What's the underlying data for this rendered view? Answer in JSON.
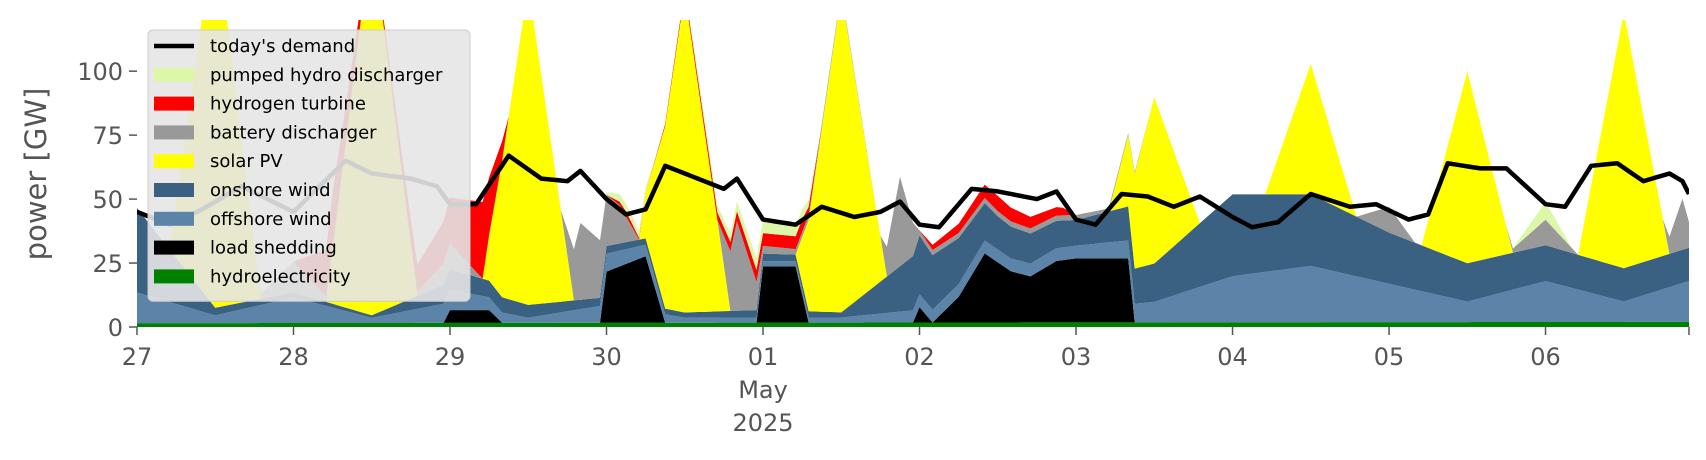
{
  "chart_data": {
    "type": "area",
    "title": "",
    "xlabel": "",
    "ylabel": "power [GW]",
    "ylim": [
      0,
      120
    ],
    "xlim": [
      "2025-04-27T00:00",
      "2025-05-06T22:00"
    ],
    "yticks": [
      0,
      25,
      50,
      75,
      100
    ],
    "xtick_labels": [
      {
        "date": "2025-04-27",
        "label": "27"
      },
      {
        "date": "2025-04-28",
        "label": "28"
      },
      {
        "date": "2025-04-29",
        "label": "29"
      },
      {
        "date": "2025-04-30",
        "label": "30"
      },
      {
        "date": "2025-05-01",
        "label": "01"
      },
      {
        "date": "2025-05-02",
        "label": "02"
      },
      {
        "date": "2025-05-03",
        "label": "03"
      },
      {
        "date": "2025-05-04",
        "label": "04"
      },
      {
        "date": "2025-05-05",
        "label": "05"
      },
      {
        "date": "2025-05-06",
        "label": "06"
      }
    ],
    "xtick_sublabels": {
      "month": "May",
      "year": "2025",
      "under_date": "2025-05-01"
    },
    "grid": false,
    "legend_position": "top-left",
    "stacked_series": [
      {
        "name": "hydroelectricity",
        "color": "#008000",
        "points": [
          [
            "2025-04-27T00:00",
            1.5
          ],
          [
            "2025-05-06T22:00",
            2
          ]
        ]
      },
      {
        "name": "load shedding",
        "color": "#000000",
        "points": [
          [
            "2025-04-27T00:00",
            0
          ],
          [
            "2025-04-28T23:00",
            0
          ],
          [
            "2025-04-29T00:00",
            5
          ],
          [
            "2025-04-29T06:00",
            5
          ],
          [
            "2025-04-29T08:00",
            0
          ],
          [
            "2025-04-29T23:00",
            0
          ],
          [
            "2025-04-30T00:00",
            20
          ],
          [
            "2025-04-30T06:00",
            26
          ],
          [
            "2025-04-30T09:00",
            0
          ],
          [
            "2025-04-30T23:00",
            0
          ],
          [
            "2025-05-01T00:00",
            22
          ],
          [
            "2025-05-01T05:00",
            22
          ],
          [
            "2025-05-01T07:00",
            0
          ],
          [
            "2025-05-01T23:00",
            0
          ],
          [
            "2025-05-02T00:00",
            6
          ],
          [
            "2025-05-02T02:00",
            0
          ],
          [
            "2025-05-02T06:00",
            10
          ],
          [
            "2025-05-02T10:00",
            27
          ],
          [
            "2025-05-02T14:00",
            20
          ],
          [
            "2025-05-02T17:00",
            18
          ],
          [
            "2025-05-02T21:00",
            24
          ],
          [
            "2025-05-03T00:00",
            25
          ],
          [
            "2025-05-03T08:00",
            25
          ],
          [
            "2025-05-03T09:00",
            0
          ],
          [
            "2025-05-06T22:00",
            0
          ]
        ]
      },
      {
        "name": "offshore wind",
        "color": "#5b84a8",
        "points": [
          [
            "2025-04-27T00:00",
            12
          ],
          [
            "2025-04-27T12:00",
            3
          ],
          [
            "2025-04-28T00:00",
            10
          ],
          [
            "2025-04-28T12:00",
            2
          ],
          [
            "2025-04-29T00:00",
            8
          ],
          [
            "2025-04-29T12:00",
            2
          ],
          [
            "2025-04-30T00:00",
            7
          ],
          [
            "2025-04-30T12:00",
            2
          ],
          [
            "2025-05-01T00:00",
            2
          ],
          [
            "2025-05-01T12:00",
            2
          ],
          [
            "2025-05-02T00:00",
            5
          ],
          [
            "2025-05-02T12:00",
            5
          ],
          [
            "2025-05-03T00:00",
            5
          ],
          [
            "2025-05-03T12:00",
            8
          ],
          [
            "2025-05-04T00:00",
            18
          ],
          [
            "2025-05-04T12:00",
            22
          ],
          [
            "2025-05-05T00:00",
            15
          ],
          [
            "2025-05-05T12:00",
            8
          ],
          [
            "2025-05-06T00:00",
            16
          ],
          [
            "2025-05-06T12:00",
            8
          ],
          [
            "2025-05-06T22:00",
            16
          ]
        ]
      },
      {
        "name": "onshore wind",
        "color": "#3b6182",
        "points": [
          [
            "2025-04-27T00:00",
            33
          ],
          [
            "2025-04-27T12:00",
            3
          ],
          [
            "2025-04-28T00:00",
            2
          ],
          [
            "2025-04-28T12:00",
            1
          ],
          [
            "2025-04-29T00:00",
            8
          ],
          [
            "2025-04-29T12:00",
            5
          ],
          [
            "2025-04-30T00:00",
            3
          ],
          [
            "2025-04-30T12:00",
            2
          ],
          [
            "2025-05-01T00:00",
            3
          ],
          [
            "2025-05-01T12:00",
            2
          ],
          [
            "2025-05-02T00:00",
            23
          ],
          [
            "2025-05-02T12:00",
            13
          ],
          [
            "2025-05-03T00:00",
            10
          ],
          [
            "2025-05-03T12:00",
            15
          ],
          [
            "2025-05-04T00:00",
            32
          ],
          [
            "2025-05-04T12:00",
            28
          ],
          [
            "2025-05-05T00:00",
            20
          ],
          [
            "2025-05-05T12:00",
            15
          ],
          [
            "2025-05-06T00:00",
            14
          ],
          [
            "2025-05-06T12:00",
            13
          ],
          [
            "2025-05-06T22:00",
            13
          ]
        ]
      },
      {
        "name": "solar PV",
        "color": "#ffff00",
        "points": [
          [
            "2025-04-27T00:00",
            0
          ],
          [
            "2025-04-27T05:00",
            0
          ],
          [
            "2025-04-27T12:00",
            150
          ],
          [
            "2025-04-27T19:00",
            0
          ],
          [
            "2025-04-28T05:00",
            0
          ],
          [
            "2025-04-28T12:00",
            150
          ],
          [
            "2025-04-28T19:00",
            0
          ],
          [
            "2025-04-29T05:00",
            0
          ],
          [
            "2025-04-29T12:00",
            125
          ],
          [
            "2025-04-29T19:00",
            0
          ],
          [
            "2025-04-30T05:00",
            0
          ],
          [
            "2025-04-30T12:00",
            125
          ],
          [
            "2025-04-30T19:00",
            0
          ],
          [
            "2025-05-01T05:00",
            0
          ],
          [
            "2025-05-01T12:00",
            125
          ],
          [
            "2025-05-01T19:00",
            0
          ],
          [
            "2025-05-03T05:00",
            0
          ],
          [
            "2025-05-03T12:00",
            65
          ],
          [
            "2025-05-03T19:00",
            0
          ],
          [
            "2025-05-04T05:00",
            0
          ],
          [
            "2025-05-04T12:00",
            51
          ],
          [
            "2025-05-04T19:00",
            0
          ],
          [
            "2025-05-05T05:00",
            0
          ],
          [
            "2025-05-05T12:00",
            75
          ],
          [
            "2025-05-05T19:00",
            0
          ],
          [
            "2025-05-06T05:00",
            0
          ],
          [
            "2025-05-06T12:00",
            100
          ],
          [
            "2025-05-06T19:00",
            0
          ],
          [
            "2025-05-06T22:00",
            0
          ]
        ]
      },
      {
        "name": "battery discharger",
        "color": "#999999",
        "points": [
          [
            "2025-04-27T00:00",
            0
          ],
          [
            "2025-04-27T18:00",
            0
          ],
          [
            "2025-04-28T00:00",
            12
          ],
          [
            "2025-04-28T06:00",
            0
          ],
          [
            "2025-04-28T18:00",
            0
          ],
          [
            "2025-04-29T00:00",
            10
          ],
          [
            "2025-04-29T05:00",
            0
          ],
          [
            "2025-04-29T17:00",
            0
          ],
          [
            "2025-04-29T20:00",
            30
          ],
          [
            "2025-04-30T02:00",
            15
          ],
          [
            "2025-04-30T05:00",
            0
          ],
          [
            "2025-04-30T17:00",
            0
          ],
          [
            "2025-04-30T20:00",
            35
          ],
          [
            "2025-05-01T00:00",
            3
          ],
          [
            "2025-05-01T18:00",
            0
          ],
          [
            "2025-05-01T21:00",
            35
          ],
          [
            "2025-05-02T00:00",
            2
          ],
          [
            "2025-05-02T12:00",
            2
          ],
          [
            "2025-05-03T00:00",
            2
          ],
          [
            "2025-05-03T12:00",
            0
          ],
          [
            "2025-05-04T12:00",
            0
          ],
          [
            "2025-05-04T19:00",
            0
          ],
          [
            "2025-05-05T00:00",
            10
          ],
          [
            "2025-05-05T04:00",
            0
          ],
          [
            "2025-05-05T18:00",
            0
          ],
          [
            "2025-05-06T00:00",
            10
          ],
          [
            "2025-05-06T05:00",
            0
          ],
          [
            "2025-05-06T18:00",
            0
          ],
          [
            "2025-05-06T21:00",
            20
          ],
          [
            "2025-05-06T22:00",
            10
          ]
        ]
      },
      {
        "name": "hydrogen turbine",
        "color": "#ff0000",
        "points": [
          [
            "2025-04-27T00:00",
            0
          ],
          [
            "2025-04-28T00:00",
            0
          ],
          [
            "2025-04-28T06:00",
            22
          ],
          [
            "2025-04-28T12:00",
            0
          ],
          [
            "2025-04-29T00:00",
            18
          ],
          [
            "2025-04-29T05:00",
            30
          ],
          [
            "2025-04-29T09:00",
            0
          ],
          [
            "2025-04-30T00:00",
            0
          ],
          [
            "2025-04-30T03:00",
            2
          ],
          [
            "2025-04-30T06:00",
            0
          ],
          [
            "2025-05-01T00:00",
            5
          ],
          [
            "2025-05-01T06:00",
            5
          ],
          [
            "2025-05-01T09:00",
            0
          ],
          [
            "2025-05-02T00:00",
            0
          ],
          [
            "2025-05-02T02:00",
            2
          ],
          [
            "2025-05-02T12:00",
            6
          ],
          [
            "2025-05-02T22:00",
            3
          ],
          [
            "2025-05-03T00:00",
            0
          ],
          [
            "2025-05-06T22:00",
            0
          ]
        ]
      },
      {
        "name": "pumped hydro discharger",
        "color": "#ddf7a8",
        "points": [
          [
            "2025-04-27T00:00",
            0
          ],
          [
            "2025-04-29T23:00",
            0
          ],
          [
            "2025-04-30T02:00",
            3
          ],
          [
            "2025-04-30T05:00",
            3
          ],
          [
            "2025-04-30T08:00",
            0
          ],
          [
            "2025-05-01T00:00",
            5
          ],
          [
            "2025-05-01T06:00",
            4
          ],
          [
            "2025-05-01T09:00",
            0
          ],
          [
            "2025-05-05T19:00",
            0
          ],
          [
            "2025-05-06T00:00",
            7
          ],
          [
            "2025-05-06T04:00",
            0
          ],
          [
            "2025-05-06T22:00",
            0
          ]
        ]
      }
    ],
    "line_series": [
      {
        "name": "today's demand",
        "color": "#000000",
        "points": [
          [
            "2025-04-27T00:00",
            45
          ],
          [
            "2025-04-27T05:00",
            40
          ],
          [
            "2025-04-27T10:00",
            46
          ],
          [
            "2025-04-27T16:00",
            55
          ],
          [
            "2025-04-27T20:00",
            50
          ],
          [
            "2025-04-28T00:00",
            45
          ],
          [
            "2025-04-28T04:00",
            55
          ],
          [
            "2025-04-28T08:00",
            65
          ],
          [
            "2025-04-28T12:00",
            60
          ],
          [
            "2025-04-28T18:00",
            58
          ],
          [
            "2025-04-28T22:00",
            55
          ],
          [
            "2025-04-29T00:00",
            48
          ],
          [
            "2025-04-29T04:00",
            48
          ],
          [
            "2025-04-29T09:00",
            67
          ],
          [
            "2025-04-29T14:00",
            58
          ],
          [
            "2025-04-29T18:00",
            57
          ],
          [
            "2025-04-29T20:00",
            61
          ],
          [
            "2025-04-30T00:00",
            50
          ],
          [
            "2025-04-30T03:00",
            44
          ],
          [
            "2025-04-30T06:00",
            46
          ],
          [
            "2025-04-30T09:00",
            63
          ],
          [
            "2025-04-30T14:00",
            58
          ],
          [
            "2025-04-30T18:00",
            54
          ],
          [
            "2025-04-30T20:00",
            58
          ],
          [
            "2025-05-01T00:00",
            42
          ],
          [
            "2025-05-01T05:00",
            40
          ],
          [
            "2025-05-01T09:00",
            47
          ],
          [
            "2025-05-01T14:00",
            43
          ],
          [
            "2025-05-01T18:00",
            45
          ],
          [
            "2025-05-01T21:00",
            49
          ],
          [
            "2025-05-02T00:00",
            40
          ],
          [
            "2025-05-02T03:00",
            39
          ],
          [
            "2025-05-02T08:00",
            54
          ],
          [
            "2025-05-02T12:00",
            53
          ],
          [
            "2025-05-02T18:00",
            50
          ],
          [
            "2025-05-02T21:00",
            53
          ],
          [
            "2025-05-03T00:00",
            42
          ],
          [
            "2025-05-03T03:00",
            40
          ],
          [
            "2025-05-03T07:00",
            52
          ],
          [
            "2025-05-03T11:00",
            51
          ],
          [
            "2025-05-03T15:00",
            47
          ],
          [
            "2025-05-03T19:00",
            51
          ],
          [
            "2025-05-04T00:00",
            43
          ],
          [
            "2025-05-04T03:00",
            39
          ],
          [
            "2025-05-04T07:00",
            41
          ],
          [
            "2025-05-04T12:00",
            52
          ],
          [
            "2025-05-04T18:00",
            47
          ],
          [
            "2025-05-04T22:00",
            48
          ],
          [
            "2025-05-05T03:00",
            42
          ],
          [
            "2025-05-05T06:00",
            44
          ],
          [
            "2025-05-05T09:00",
            64
          ],
          [
            "2025-05-05T14:00",
            62
          ],
          [
            "2025-05-05T18:00",
            62
          ],
          [
            "2025-05-06T00:00",
            48
          ],
          [
            "2025-05-06T03:00",
            47
          ],
          [
            "2025-05-06T07:00",
            63
          ],
          [
            "2025-05-06T11:00",
            64
          ],
          [
            "2025-05-06T15:00",
            57
          ],
          [
            "2025-05-06T19:00",
            60
          ],
          [
            "2025-05-06T21:00",
            57
          ],
          [
            "2025-05-06T22:00",
            52
          ]
        ]
      }
    ],
    "legend": [
      {
        "label": "today's demand",
        "kind": "line",
        "color": "#000000"
      },
      {
        "label": "pumped hydro discharger",
        "kind": "patch",
        "color": "#ddf7a8"
      },
      {
        "label": "hydrogen turbine",
        "kind": "patch",
        "color": "#ff0000"
      },
      {
        "label": "battery discharger",
        "kind": "patch",
        "color": "#999999"
      },
      {
        "label": "solar PV",
        "kind": "patch",
        "color": "#ffff00"
      },
      {
        "label": "onshore wind",
        "kind": "patch",
        "color": "#3b6182"
      },
      {
        "label": "offshore wind",
        "kind": "patch",
        "color": "#5b84a8"
      },
      {
        "label": "load shedding",
        "kind": "patch",
        "color": "#000000"
      },
      {
        "label": "hydroelectricity",
        "kind": "patch",
        "color": "#008000"
      }
    ]
  }
}
